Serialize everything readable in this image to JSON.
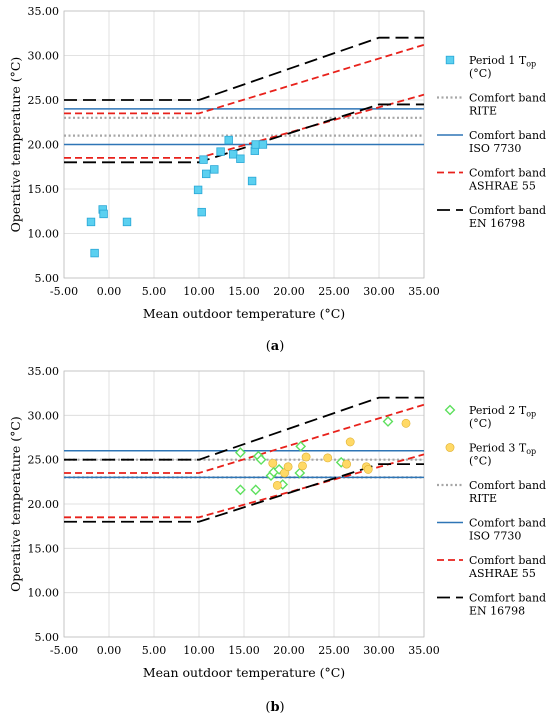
{
  "chart_data": [
    {
      "type": "scatter",
      "subtitle_prefix": "(",
      "subtitle_letter": "a",
      "subtitle_suffix": ")",
      "xlabel": "Mean outdoor temperature (°C)",
      "ylabel": "Operative temperature (°C)",
      "xlim": [
        -5,
        35
      ],
      "ylim": [
        5,
        35
      ],
      "x_ticks": [
        "-5.00",
        "0.00",
        "5.00",
        "10.00",
        "15.00",
        "20.00",
        "25.00",
        "30.00",
        "35.00"
      ],
      "y_ticks": [
        "5.00",
        "10.00",
        "15.00",
        "20.00",
        "25.00",
        "30.00",
        "35.00"
      ],
      "grid": true,
      "legend_position": "right",
      "series": [
        {
          "name": "Period 1 T",
          "name_sub": "op",
          "name_line2": "(°C)",
          "kind": "points",
          "marker": "square",
          "color": "#5BD0F0",
          "edge": "#2aa7d6",
          "points": [
            [
              -2.0,
              11.3
            ],
            [
              -1.6,
              7.8
            ],
            [
              -0.7,
              12.7
            ],
            [
              -0.6,
              12.2
            ],
            [
              2.0,
              11.3
            ],
            [
              9.9,
              14.9
            ],
            [
              10.3,
              12.4
            ],
            [
              10.5,
              18.3
            ],
            [
              10.8,
              16.7
            ],
            [
              11.7,
              17.2
            ],
            [
              12.4,
              19.2
            ],
            [
              13.3,
              20.5
            ],
            [
              13.8,
              18.9
            ],
            [
              14.6,
              18.4
            ],
            [
              15.9,
              15.9
            ],
            [
              16.2,
              19.3
            ],
            [
              16.3,
              20.0
            ],
            [
              17.1,
              20.0
            ]
          ]
        },
        {
          "name": "Comfort band",
          "name_line2": "RITE",
          "kind": "band",
          "style": "dotted",
          "color": "#a6a6a6",
          "width": 2.2,
          "lines": [
            [
              [
                -5,
                21.0
              ],
              [
                35,
                21.0
              ]
            ],
            [
              [
                -5,
                23.0
              ],
              [
                35,
                23.0
              ]
            ]
          ]
        },
        {
          "name": "Comfort band",
          "name_line2": "ISO 7730",
          "kind": "band",
          "style": "solid",
          "color": "#2E75B6",
          "width": 1.5,
          "lines": [
            [
              [
                -5,
                20.0
              ],
              [
                35,
                20.0
              ]
            ],
            [
              [
                -5,
                24.0
              ],
              [
                35,
                24.0
              ]
            ]
          ]
        },
        {
          "name": "Comfort band",
          "name_line2": "ASHRAE 55",
          "kind": "band",
          "style": "dashed",
          "color": "#E8211B",
          "width": 1.8,
          "lines": [
            [
              [
                -5,
                23.5
              ],
              [
                10,
                23.5
              ],
              [
                35,
                31.2
              ]
            ],
            [
              [
                -5,
                18.5
              ],
              [
                10,
                18.5
              ],
              [
                35,
                25.6
              ]
            ]
          ]
        },
        {
          "name": "Comfort band",
          "name_line2": "EN 16798",
          "kind": "band",
          "style": "longdash",
          "color": "#000000",
          "width": 1.8,
          "lines": [
            [
              [
                -5,
                25.0
              ],
              [
                10,
                25.0
              ],
              [
                30,
                32.0
              ],
              [
                35,
                32.0
              ]
            ],
            [
              [
                -5,
                18.0
              ],
              [
                10,
                18.0
              ],
              [
                30,
                24.5
              ],
              [
                35,
                24.5
              ]
            ]
          ]
        }
      ]
    },
    {
      "type": "scatter",
      "subtitle_prefix": "(",
      "subtitle_letter": "b",
      "subtitle_suffix": ")",
      "xlabel": "Mean outdoor temperature (°C)",
      "ylabel": "Operative temperature (°C)",
      "xlim": [
        -5,
        35
      ],
      "ylim": [
        5,
        35
      ],
      "x_ticks": [
        "-5.00",
        "0.00",
        "5.00",
        "10.00",
        "15.00",
        "20.00",
        "25.00",
        "30.00",
        "35.00"
      ],
      "y_ticks": [
        "5.00",
        "10.00",
        "15.00",
        "20.00",
        "25.00",
        "30.00",
        "35.00"
      ],
      "grid": true,
      "legend_position": "right",
      "series": [
        {
          "name": "Comfort band",
          "name_line2": "RITE",
          "kind": "band",
          "style": "dotted",
          "color": "#a6a6a6",
          "width": 2.2,
          "lines": [
            [
              [
                -5,
                23.0
              ],
              [
                35,
                23.0
              ]
            ],
            [
              [
                -5,
                25.0
              ],
              [
                35,
                25.0
              ]
            ]
          ]
        },
        {
          "name": "Comfort band",
          "name_line2": "ISO 7730",
          "kind": "band",
          "style": "solid",
          "color": "#2E75B6",
          "width": 1.5,
          "lines": [
            [
              [
                -5,
                23.0
              ],
              [
                35,
                23.0
              ]
            ],
            [
              [
                -5,
                26.0
              ],
              [
                35,
                26.0
              ]
            ]
          ]
        },
        {
          "name": "Comfort band",
          "name_line2": "ASHRAE 55",
          "kind": "band",
          "style": "dashed",
          "color": "#E8211B",
          "width": 1.8,
          "lines": [
            [
              [
                -5,
                23.5
              ],
              [
                10,
                23.5
              ],
              [
                35,
                31.2
              ]
            ],
            [
              [
                -5,
                18.5
              ],
              [
                10,
                18.5
              ],
              [
                35,
                25.6
              ]
            ]
          ]
        },
        {
          "name": "Comfort band",
          "name_line2": "EN 16798",
          "kind": "band",
          "style": "longdash",
          "color": "#000000",
          "width": 1.8,
          "lines": [
            [
              [
                -5,
                25.0
              ],
              [
                10,
                25.0
              ],
              [
                30,
                32.0
              ],
              [
                35,
                32.0
              ]
            ],
            [
              [
                -5,
                18.0
              ],
              [
                10,
                18.0
              ],
              [
                30,
                24.5
              ],
              [
                35,
                24.5
              ]
            ]
          ]
        },
        {
          "name": "Period 2 T",
          "name_sub": "op",
          "name_line2": "(°C)",
          "kind": "points",
          "marker": "diamond",
          "color": "#5EE05E",
          "edge": "#1f9e1f",
          "points": [
            [
              14.6,
              25.8
            ],
            [
              14.6,
              21.6
            ],
            [
              16.3,
              21.6
            ],
            [
              16.6,
              25.4
            ],
            [
              16.9,
              25.0
            ],
            [
              18.0,
              23.2
            ],
            [
              18.3,
              23.6
            ],
            [
              18.9,
              23.9
            ],
            [
              19.3,
              22.2
            ],
            [
              21.2,
              23.5
            ],
            [
              21.3,
              26.5
            ],
            [
              25.8,
              24.7
            ],
            [
              31.0,
              29.3
            ]
          ]
        },
        {
          "name": "Period 3 T",
          "name_sub": "op",
          "name_line2": "(°C)",
          "kind": "points",
          "marker": "circle",
          "color": "#FFD966",
          "edge": "#e0b030",
          "points": [
            [
              18.2,
              24.6
            ],
            [
              18.7,
              22.1
            ],
            [
              19.5,
              23.5
            ],
            [
              19.9,
              24.2
            ],
            [
              21.5,
              24.3
            ],
            [
              21.9,
              25.3
            ],
            [
              24.3,
              25.2
            ],
            [
              26.4,
              24.5
            ],
            [
              26.8,
              27.0
            ],
            [
              28.6,
              24.2
            ],
            [
              28.8,
              23.9
            ],
            [
              33.0,
              29.1
            ]
          ]
        }
      ],
      "legend_order": [
        4,
        5,
        0,
        1,
        2,
        3
      ]
    }
  ]
}
